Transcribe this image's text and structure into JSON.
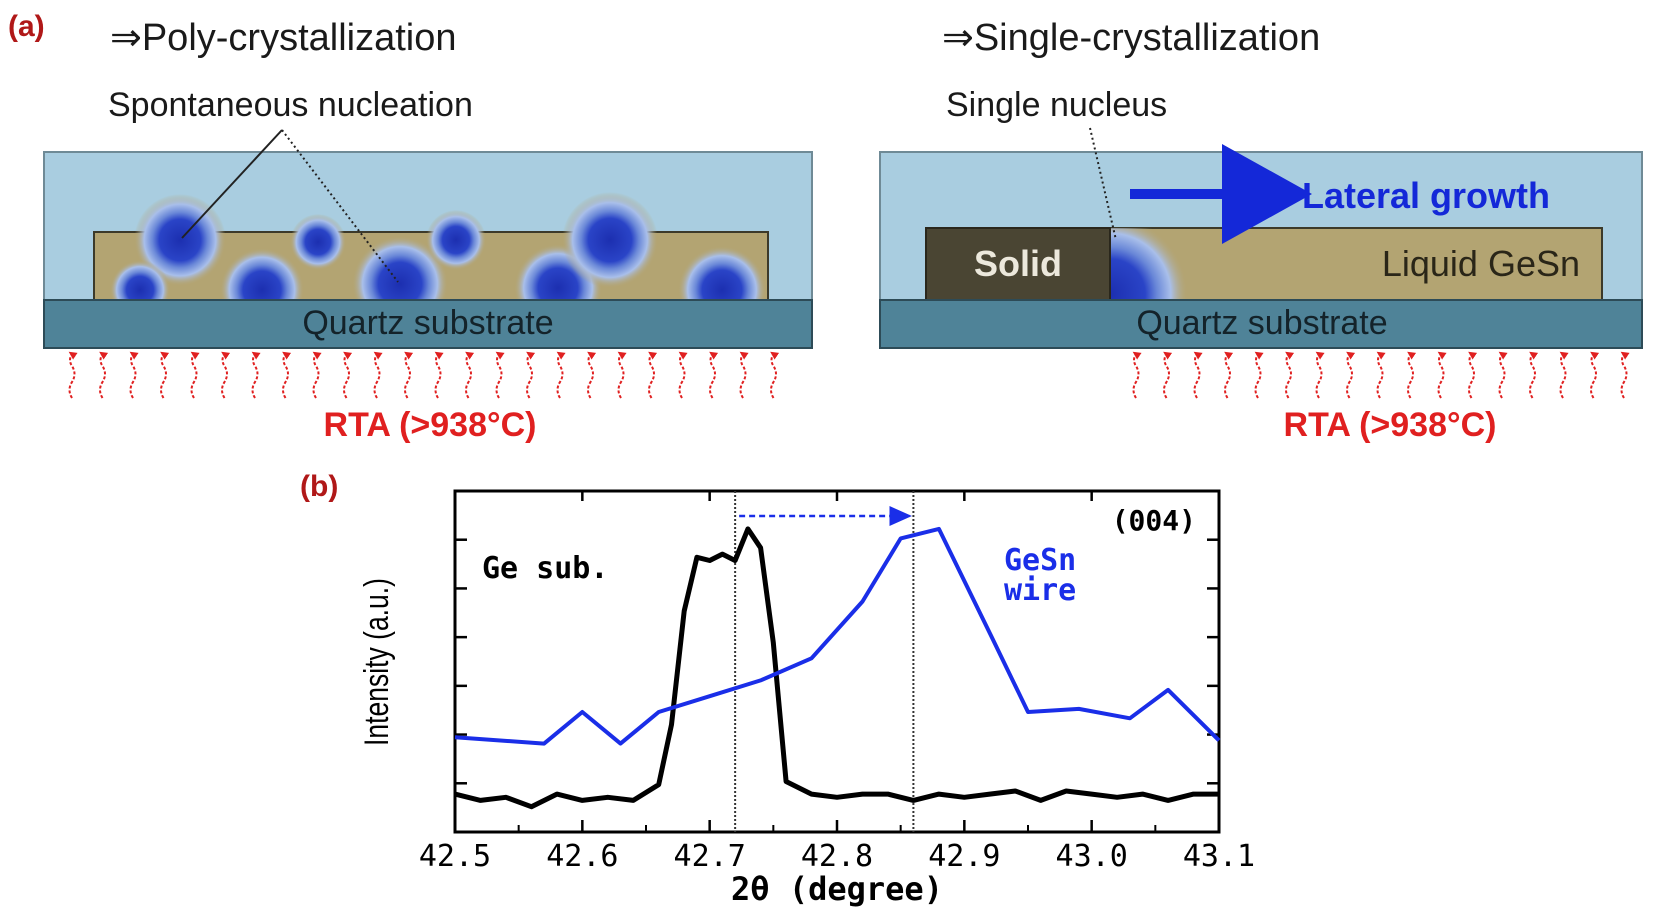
{
  "panel_a": {
    "label": "(a)",
    "left": {
      "title": "⇒Poly-crystallization",
      "annotation": "Spontaneous nucleation",
      "substrate": "Quartz substrate",
      "heat": "RTA (>938°C)"
    },
    "right": {
      "title": "⇒Single-crystallization",
      "annotation": "Single nucleus",
      "growth": "Lateral growth",
      "solid": "Solid",
      "liquid": "Liquid GeSn",
      "substrate": "Quartz substrate",
      "heat": "RTA (>938°C)"
    },
    "colors": {
      "capping": "#a9cde0",
      "film": "#b3a472",
      "substrate": "#4f8398",
      "solid": "#4a4533",
      "nucleus": "#2035b5",
      "heat": "#e02020",
      "growth_arrow": "#1428d8"
    }
  },
  "panel_b": {
    "label": "(b)",
    "reflection": "(004)",
    "ge_label": "Ge sub.",
    "gesn_label_line1": "GeSn",
    "gesn_label_line2": "wire",
    "colors": {
      "ge": "#000000",
      "gesn": "#1a2ee8"
    }
  },
  "chart_data": {
    "type": "line",
    "xlabel": "2θ (degree)",
    "ylabel": "Intensity (a.u.)",
    "xlim": [
      42.5,
      43.1
    ],
    "ylim": [
      0,
      1.08
    ],
    "xticks": [
      "42.5",
      "42.6",
      "42.7",
      "42.8",
      "42.9",
      "43.0",
      "43.1"
    ],
    "reference_lines_x": [
      42.72,
      42.86
    ],
    "series": [
      {
        "name": "Ge sub.",
        "x": [
          42.5,
          42.52,
          42.54,
          42.56,
          42.58,
          42.6,
          42.62,
          42.64,
          42.66,
          42.67,
          42.68,
          42.69,
          42.7,
          42.71,
          42.72,
          42.73,
          42.74,
          42.75,
          42.76,
          42.78,
          42.8,
          42.82,
          42.84,
          42.86,
          42.88,
          42.9,
          42.92,
          42.94,
          42.96,
          42.98,
          43.0,
          43.02,
          43.04,
          43.06,
          43.08,
          43.1
        ],
        "y": [
          0.12,
          0.1,
          0.11,
          0.08,
          0.12,
          0.1,
          0.11,
          0.1,
          0.15,
          0.34,
          0.7,
          0.87,
          0.86,
          0.88,
          0.86,
          0.96,
          0.9,
          0.6,
          0.16,
          0.12,
          0.11,
          0.12,
          0.12,
          0.1,
          0.12,
          0.11,
          0.12,
          0.13,
          0.1,
          0.13,
          0.12,
          0.11,
          0.12,
          0.1,
          0.12,
          0.12
        ]
      },
      {
        "name": "GeSn wire",
        "x": [
          42.5,
          42.57,
          42.6,
          42.63,
          42.66,
          42.7,
          42.74,
          42.78,
          42.82,
          42.85,
          42.88,
          42.92,
          42.95,
          42.99,
          43.03,
          43.06,
          43.1
        ],
        "y": [
          0.3,
          0.28,
          0.38,
          0.28,
          0.38,
          0.43,
          0.48,
          0.55,
          0.73,
          0.93,
          0.96,
          0.63,
          0.38,
          0.39,
          0.36,
          0.45,
          0.29
        ]
      }
    ]
  }
}
